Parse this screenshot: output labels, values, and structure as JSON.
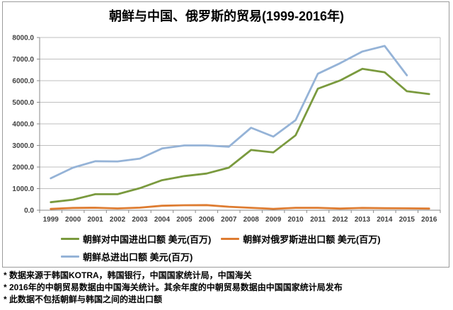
{
  "title": "朝鲜与中国、俄罗斯的贸易(1999-2016年)",
  "chart_data": {
    "type": "line",
    "title": "朝鲜与中国、俄罗斯的贸易(1999-2016年)",
    "x": [
      1999,
      2000,
      2001,
      2002,
      2003,
      2004,
      2005,
      2006,
      2007,
      2008,
      2009,
      2010,
      2011,
      2012,
      2013,
      2014,
      2015,
      2016
    ],
    "series": [
      {
        "name": "朝鲜对中国进出口额 美元(百万)",
        "color": "#7a9a3e",
        "values": [
          370,
          490,
          740,
          740,
          1020,
          1390,
          1580,
          1700,
          1970,
          2790,
          2680,
          3470,
          5630,
          6010,
          6550,
          6390,
          5510,
          5380
        ]
      },
      {
        "name": "朝鲜对俄罗斯进出口额 美元(百万)",
        "color": "#de7c31",
        "values": [
          62,
          105,
          115,
          81,
          118,
          205,
          228,
          235,
          160,
          111,
          62,
          111,
          113,
          77,
          104,
          92,
          84,
          77
        ]
      },
      {
        "name": "朝鲜总进出口额 美元(百万)",
        "color": "#95b3d7",
        "values": [
          1480,
          1970,
          2270,
          2260,
          2390,
          2860,
          3000,
          3000,
          2940,
          3820,
          3410,
          4170,
          6320,
          6810,
          7350,
          7610,
          6250,
          null
        ]
      }
    ],
    "ylim": [
      0,
      8000
    ],
    "yticks": [
      0,
      1000,
      2000,
      3000,
      4000,
      5000,
      6000,
      7000,
      8000
    ],
    "ytick_labels": [
      "0.0",
      "1000.0",
      "2000.0",
      "3000.0",
      "4000.0",
      "5000.0",
      "6000.0",
      "7000.0",
      "8000.0"
    ],
    "xlabel": "",
    "ylabel": "",
    "grid": true,
    "legend_position": "bottom",
    "legend_rows": [
      [
        0,
        1
      ],
      [
        2
      ]
    ],
    "colors": {
      "gridline": "#bfbfbf",
      "axis": "#898989",
      "tick_label": "#404040",
      "plot_border": "#bfbfbf"
    }
  },
  "footnotes": [
    "* 数据来源于韩国KOTRA，韩国银行，中国国家统计局，中国海关",
    "* 2016年的中朝贸易数据由中国海关统计。其余年度的中朝贸易数据由中国国家统计局发布",
    "* 此数据不包括朝鲜与韩国之间的进出口额"
  ]
}
